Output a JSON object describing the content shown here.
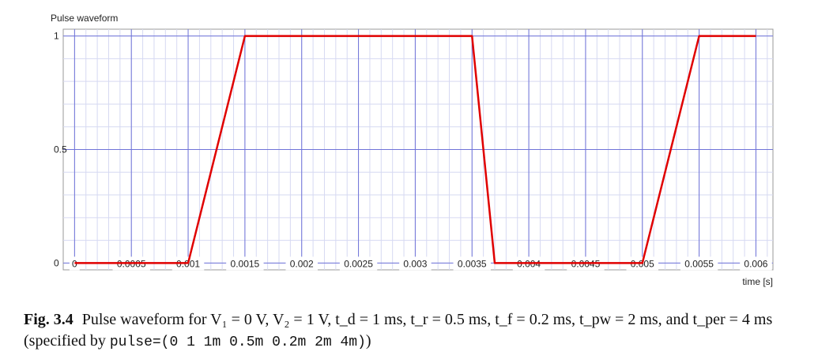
{
  "chart_data": {
    "type": "line",
    "title": "Pulse waveform",
    "xlabel": "time [s]",
    "ylabel": "",
    "xlim": [
      -0.0001,
      0.00615
    ],
    "ylim": [
      -0.03,
      1.03
    ],
    "grid": true,
    "x_ticks": [
      0,
      0.0005,
      0.001,
      0.0015,
      0.002,
      0.0025,
      0.003,
      0.0035,
      0.004,
      0.0045,
      0.005,
      0.0055,
      0.006
    ],
    "x_tick_labels": [
      "0",
      "0.0005",
      "0.001",
      "0.0015",
      "0.002",
      "0.0025",
      "0.003",
      "0.0035",
      "0.004",
      "0.0045",
      "0.005",
      "0.0055",
      "0.006"
    ],
    "y_ticks": [
      0,
      0.5,
      1
    ],
    "y_tick_labels": [
      "0",
      "0.5",
      "1"
    ],
    "series": [
      {
        "color": "#e00000",
        "x": [
          0,
          0.001,
          0.0015,
          0.0035,
          0.0037,
          0.005,
          0.0055,
          0.006
        ],
        "y": [
          0,
          0,
          1,
          1,
          0,
          0,
          1,
          1
        ]
      }
    ]
  },
  "caption": {
    "lead": "Fig. 3.4",
    "text": "Pulse waveform for V₁ = 0 V, V₂ = 1 V, t_d = 1 ms, t_r = 0.5 ms, t_f = 0.2 ms, t_pw = 2 ms, and t_per = 4 ms (specified by",
    "code": "pulse=(0 1 1m 0.5m 0.2m 2m 4m)",
    "tail": ")"
  }
}
